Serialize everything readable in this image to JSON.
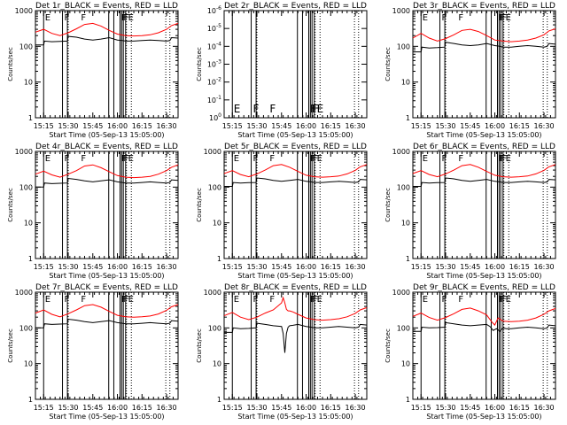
{
  "figure": {
    "ylabel": "Counts/sec",
    "xlabel": "Start Time (05-Sep-13 15:05:00)",
    "x_tick_labels": [
      "15:15",
      "15:30",
      "15:45",
      "16:00",
      "16:15",
      "16:30"
    ],
    "colors": {
      "events": "#000000",
      "lld": "#ff0000",
      "axes": "#000000",
      "background": "#ffffff"
    },
    "solid_vlines_min": [
      10.0,
      21.5,
      24.5,
      49.7,
      52.8,
      56.6,
      57.6,
      58.6,
      60.0
    ],
    "dotted_vlines_min": [
      25.0,
      60.5,
      63.5,
      84.5,
      87.0
    ],
    "marker_positions_min": [
      10.3,
      22.0,
      32.2,
      56.8,
      57.8,
      58.8,
      61.0
    ],
    "markers": [
      "E",
      "F",
      "F",
      "F",
      "F",
      "F",
      "E"
    ],
    "xlim_min": [
      5,
      92
    ]
  },
  "chart_data": [
    {
      "type": "line",
      "title": "Det 1r_BLACK = Events, RED = LLD",
      "ylim": [
        1,
        1000
      ],
      "yscale": "log",
      "ytick_labels": [
        "1",
        "10",
        "100",
        "1000"
      ],
      "x_unit": "minutes since 15:05:00",
      "series": [
        {
          "name": "Events",
          "color": "#000000",
          "x": [
            5,
            10,
            10.5,
            15,
            20,
            24.5,
            25,
            30,
            35,
            40,
            45,
            50,
            55,
            58,
            60,
            62,
            65,
            70,
            75,
            80,
            85,
            87,
            88,
            92
          ],
          "y": [
            110,
            110,
            140,
            135,
            138,
            140,
            190,
            180,
            160,
            150,
            160,
            175,
            150,
            145,
            140,
            140,
            140,
            145,
            150,
            145,
            140,
            145,
            175,
            170
          ]
        },
        {
          "name": "LLD",
          "color": "#ff0000",
          "x": [
            5,
            10,
            15,
            20,
            25,
            30,
            35,
            40,
            45,
            50,
            55,
            60,
            65,
            70,
            75,
            80,
            85,
            88,
            92
          ],
          "y": [
            250,
            300,
            230,
            200,
            240,
            310,
            410,
            440,
            370,
            280,
            220,
            200,
            195,
            200,
            210,
            240,
            300,
            380,
            440
          ]
        }
      ]
    },
    {
      "type": "line",
      "title": "Det 2r_BLACK = Events, RED = LLD",
      "ylim": [
        1,
        1e-06
      ],
      "yscale": "log",
      "ytick_labels": [
        "10^0",
        "10^-1",
        "10^-2",
        "10^-3",
        "10^-4",
        "10^-5",
        "10^-6"
      ],
      "x_unit": "minutes since 15:05:00",
      "series": []
    },
    {
      "type": "line",
      "title": "Det 3r_BLACK = Events, RED = LLD",
      "ylim": [
        1,
        1000
      ],
      "yscale": "log",
      "ytick_labels": [
        "1",
        "10",
        "100",
        "1000"
      ],
      "x_unit": "minutes since 15:05:00",
      "series": [
        {
          "name": "Events",
          "color": "#000000",
          "x": [
            5,
            10,
            10.5,
            15,
            20,
            24.5,
            25,
            30,
            35,
            40,
            45,
            50,
            55,
            58,
            60,
            62,
            65,
            70,
            75,
            80,
            85,
            87,
            88,
            92
          ],
          "y": [
            70,
            70,
            95,
            90,
            92,
            95,
            130,
            120,
            110,
            105,
            110,
            120,
            105,
            100,
            95,
            95,
            95,
            100,
            105,
            100,
            95,
            100,
            120,
            115
          ]
        },
        {
          "name": "LLD",
          "color": "#ff0000",
          "x": [
            5,
            10,
            15,
            20,
            25,
            30,
            35,
            40,
            45,
            50,
            55,
            60,
            65,
            70,
            75,
            80,
            85,
            88,
            92
          ],
          "y": [
            170,
            230,
            170,
            140,
            165,
            210,
            280,
            300,
            260,
            200,
            150,
            140,
            135,
            140,
            150,
            170,
            210,
            270,
            310
          ]
        }
      ]
    },
    {
      "type": "line",
      "title": "Det 4r_BLACK = Events, RED = LLD",
      "ylim": [
        1,
        1000
      ],
      "yscale": "log",
      "ytick_labels": [
        "1",
        "10",
        "100",
        "1000"
      ],
      "x_unit": "minutes since 15:05:00",
      "series": [
        {
          "name": "Events",
          "color": "#000000",
          "x": [
            5,
            10,
            10.5,
            15,
            20,
            24.5,
            25,
            30,
            35,
            40,
            45,
            50,
            55,
            58,
            60,
            62,
            65,
            70,
            75,
            80,
            85,
            87,
            88,
            92
          ],
          "y": [
            100,
            100,
            130,
            125,
            128,
            130,
            175,
            165,
            150,
            140,
            150,
            160,
            140,
            135,
            130,
            130,
            130,
            135,
            140,
            135,
            130,
            135,
            160,
            155
          ]
        },
        {
          "name": "LLD",
          "color": "#ff0000",
          "x": [
            5,
            10,
            15,
            20,
            25,
            30,
            35,
            40,
            45,
            50,
            55,
            60,
            65,
            70,
            75,
            80,
            85,
            88,
            92
          ],
          "y": [
            230,
            280,
            220,
            190,
            230,
            290,
            390,
            420,
            350,
            270,
            210,
            190,
            185,
            190,
            200,
            230,
            290,
            360,
            420
          ]
        }
      ]
    },
    {
      "type": "line",
      "title": "Det 5r_BLACK = Events, RED = LLD",
      "ylim": [
        1,
        1000
      ],
      "yscale": "log",
      "ytick_labels": [
        "1",
        "10",
        "100",
        "1000"
      ],
      "x_unit": "minutes since 15:05:00",
      "series": [
        {
          "name": "Events",
          "color": "#000000",
          "x": [
            5,
            10,
            10.5,
            15,
            20,
            24.5,
            25,
            30,
            35,
            40,
            45,
            50,
            55,
            58,
            60,
            62,
            65,
            70,
            75,
            80,
            85,
            87,
            88,
            92
          ],
          "y": [
            105,
            105,
            135,
            130,
            133,
            135,
            180,
            170,
            155,
            145,
            155,
            165,
            145,
            140,
            135,
            135,
            135,
            140,
            145,
            140,
            135,
            140,
            165,
            160
          ]
        },
        {
          "name": "LLD",
          "color": "#ff0000",
          "x": [
            5,
            10,
            15,
            20,
            25,
            30,
            35,
            40,
            45,
            50,
            55,
            60,
            65,
            70,
            75,
            80,
            85,
            88,
            92
          ],
          "y": [
            240,
            290,
            225,
            195,
            235,
            300,
            400,
            430,
            360,
            275,
            215,
            195,
            190,
            195,
            205,
            235,
            295,
            370,
            430
          ]
        }
      ]
    },
    {
      "type": "line",
      "title": "Det 6r_BLACK = Events, RED = LLD",
      "ylim": [
        1,
        1000
      ],
      "yscale": "log",
      "ytick_labels": [
        "1",
        "10",
        "100",
        "1000"
      ],
      "x_unit": "minutes since 15:05:00",
      "series": [
        {
          "name": "Events",
          "color": "#000000",
          "x": [
            5,
            10,
            10.5,
            15,
            20,
            24.5,
            25,
            30,
            35,
            40,
            45,
            50,
            55,
            58,
            60,
            62,
            65,
            70,
            75,
            80,
            85,
            87,
            88,
            92
          ],
          "y": [
            105,
            105,
            135,
            130,
            133,
            135,
            180,
            170,
            155,
            145,
            155,
            165,
            145,
            140,
            135,
            135,
            135,
            140,
            145,
            140,
            135,
            140,
            165,
            160
          ]
        },
        {
          "name": "LLD",
          "color": "#ff0000",
          "x": [
            5,
            10,
            15,
            20,
            25,
            30,
            35,
            40,
            45,
            50,
            55,
            60,
            65,
            70,
            75,
            80,
            85,
            88,
            92
          ],
          "y": [
            240,
            290,
            225,
            195,
            235,
            300,
            400,
            430,
            360,
            275,
            215,
            195,
            190,
            195,
            205,
            235,
            295,
            370,
            430
          ]
        }
      ]
    },
    {
      "type": "line",
      "title": "Det 7r_BLACK = Events, RED = LLD",
      "ylim": [
        1,
        1000
      ],
      "yscale": "log",
      "ytick_labels": [
        "1",
        "10",
        "100",
        "1000"
      ],
      "x_unit": "minutes since 15:05:00",
      "series": [
        {
          "name": "Events",
          "color": "#000000",
          "x": [
            5,
            10,
            10.5,
            15,
            20,
            24.5,
            25,
            30,
            35,
            40,
            45,
            50,
            55,
            58,
            60,
            62,
            65,
            70,
            75,
            80,
            85,
            87,
            88,
            92
          ],
          "y": [
            100,
            100,
            130,
            125,
            128,
            130,
            175,
            165,
            150,
            140,
            150,
            160,
            140,
            135,
            130,
            130,
            130,
            135,
            140,
            135,
            130,
            135,
            160,
            155
          ]
        },
        {
          "name": "LLD",
          "color": "#ff0000",
          "x": [
            5,
            10,
            15,
            20,
            25,
            30,
            35,
            40,
            45,
            50,
            55,
            60,
            65,
            70,
            75,
            80,
            85,
            88,
            92
          ],
          "y": [
            260,
            320,
            240,
            205,
            250,
            320,
            420,
            450,
            380,
            290,
            225,
            205,
            200,
            205,
            215,
            245,
            310,
            390,
            450
          ]
        }
      ]
    },
    {
      "type": "line",
      "title": "Det 8r_BLACK = Events, RED = LLD",
      "ylim": [
        1,
        1000
      ],
      "yscale": "log",
      "ytick_labels": [
        "1",
        "10",
        "100",
        "1000"
      ],
      "x_unit": "minutes since 15:05:00",
      "series": [
        {
          "name": "Events",
          "color": "#000000",
          "x": [
            5,
            10,
            10.5,
            15,
            20,
            24.5,
            25,
            30,
            35,
            40,
            41,
            42,
            43,
            44,
            45,
            47,
            50,
            55,
            58,
            60,
            62,
            65,
            70,
            75,
            80,
            85,
            87,
            88,
            92
          ],
          "y": [
            75,
            75,
            100,
            95,
            97,
            100,
            135,
            125,
            115,
            110,
            70,
            20,
            70,
            105,
            115,
            118,
            125,
            110,
            105,
            100,
            100,
            100,
            105,
            110,
            105,
            100,
            105,
            125,
            120
          ]
        },
        {
          "name": "LLD",
          "color": "#ff0000",
          "x": [
            5,
            10,
            15,
            20,
            25,
            30,
            35,
            40,
            41,
            42,
            43,
            44,
            45,
            47,
            50,
            55,
            60,
            65,
            70,
            75,
            80,
            85,
            88,
            92
          ],
          "y": [
            220,
            270,
            200,
            170,
            200,
            260,
            320,
            500,
            700,
            500,
            330,
            300,
            300,
            280,
            240,
            190,
            170,
            165,
            170,
            180,
            205,
            255,
            320,
            370
          ]
        }
      ]
    },
    {
      "type": "line",
      "title": "Det 9r_BLACK = Events, RED = LLD",
      "ylim": [
        1,
        1000
      ],
      "yscale": "log",
      "ytick_labels": [
        "1",
        "10",
        "100",
        "1000"
      ],
      "x_unit": "minutes since 15:05:00",
      "series": [
        {
          "name": "Events",
          "color": "#000000",
          "x": [
            5,
            10,
            10.5,
            15,
            20,
            24.5,
            25,
            30,
            35,
            40,
            45,
            50,
            52,
            54,
            56,
            58,
            60,
            62,
            65,
            70,
            75,
            80,
            85,
            87,
            88,
            92
          ],
          "y": [
            80,
            80,
            105,
            100,
            102,
            105,
            140,
            130,
            120,
            115,
            120,
            125,
            110,
            85,
            95,
            80,
            100,
            95,
            95,
            100,
            105,
            100,
            95,
            100,
            120,
            115
          ]
        },
        {
          "name": "LLD",
          "color": "#ff0000",
          "x": [
            5,
            10,
            15,
            20,
            25,
            30,
            35,
            40,
            45,
            50,
            53,
            55,
            57,
            60,
            65,
            70,
            75,
            80,
            85,
            88,
            92
          ],
          "y": [
            210,
            260,
            195,
            165,
            195,
            250,
            330,
            360,
            300,
            230,
            150,
            120,
            190,
            155,
            150,
            155,
            165,
            190,
            240,
            300,
            350
          ]
        }
      ]
    }
  ]
}
